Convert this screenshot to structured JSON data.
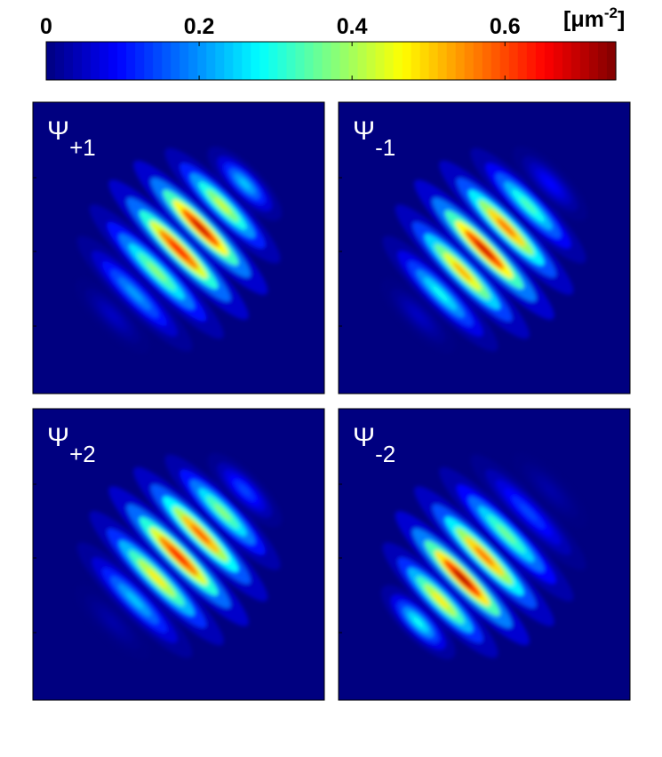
{
  "chart_data": {
    "type": "heatmap",
    "colorbar": {
      "colormap": "jet",
      "clim": [
        0,
        0.745
      ],
      "ticks": [
        0,
        0.2,
        0.4,
        0.6
      ],
      "unit_prefix": "[μm",
      "unit_power": "-2",
      "unit_suffix": "]"
    },
    "panels": [
      {
        "label": "Ψ",
        "subscript": "+1",
        "stripes": [
          0.05,
          0.22,
          0.4,
          0.68,
          0.72,
          0.45,
          0.25
        ]
      },
      {
        "label": "Ψ",
        "subscript": "-1",
        "stripes": [
          0.05,
          0.3,
          0.55,
          0.72,
          0.6,
          0.35,
          0.1
        ]
      },
      {
        "label": "Ψ",
        "subscript": "+2",
        "stripes": [
          0.03,
          0.25,
          0.5,
          0.68,
          0.62,
          0.4,
          0.15
        ]
      },
      {
        "label": "Ψ",
        "subscript": "-2",
        "stripes": [
          0.3,
          0.5,
          0.74,
          0.6,
          0.38,
          0.15,
          0.03
        ]
      }
    ]
  }
}
